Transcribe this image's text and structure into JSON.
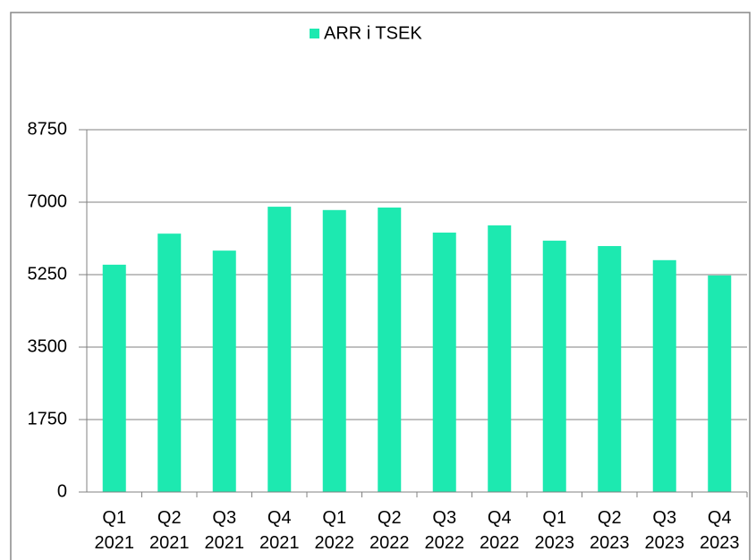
{
  "chart_data": {
    "type": "bar",
    "series": [
      {
        "name": "ARR i TSEK",
        "color": "#1de9b0",
        "values": [
          5490,
          6240,
          5830,
          6890,
          6810,
          6870,
          6265,
          6440,
          6070,
          5940,
          5600,
          5230
        ]
      }
    ],
    "categories": [
      "Q1 2021",
      "Q2 2021",
      "Q3 2021",
      "Q4 2021",
      "Q1 2022",
      "Q2 2022",
      "Q3 2022",
      "Q4 2022",
      "Q1 2023",
      "Q2 2023",
      "Q3 2023",
      "Q4 2023"
    ],
    "ylim": [
      0,
      8750
    ],
    "yticks": [
      0,
      1750,
      3500,
      5250,
      7000,
      8750
    ],
    "grid": true,
    "legend": "top"
  }
}
